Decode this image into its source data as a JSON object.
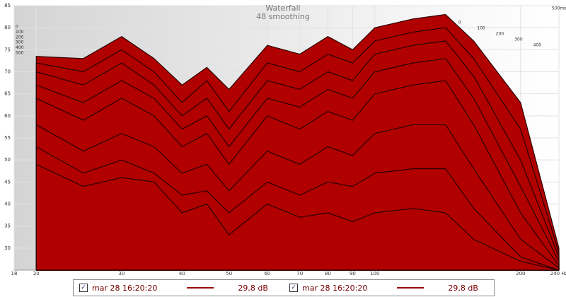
{
  "chart_data": {
    "type": "waterfall",
    "title": "Waterfall",
    "subtitle": "48 smoothing",
    "x_log": true,
    "xlim": [
      18,
      240
    ],
    "xticks": [
      18,
      20,
      30,
      40,
      50,
      60,
      70,
      80,
      90,
      100,
      200,
      {
        "value": 240,
        "label": "240 Hz"
      }
    ],
    "ylim": [
      25,
      85
    ],
    "yticks": [
      30,
      35,
      40,
      45,
      50,
      55,
      60,
      65,
      70,
      75,
      80,
      85
    ],
    "grid": true,
    "zlim": [
      0,
      500
    ],
    "zticks": [
      0,
      100,
      200,
      300,
      400,
      {
        "value": 500,
        "label": "500ms"
      }
    ],
    "zticks_left": [
      0,
      100,
      200,
      300,
      400,
      500
    ],
    "color": "#b00000",
    "x": [
      20,
      25,
      30,
      35,
      40,
      45,
      50,
      60,
      70,
      80,
      90,
      100,
      120,
      140,
      160,
      200,
      240
    ],
    "slices": [
      {
        "t": 0,
        "values": [
          73.5,
          73,
          78,
          73,
          67,
          71,
          66,
          76,
          74,
          78,
          75,
          80,
          82,
          83,
          77,
          63,
          30
        ]
      },
      {
        "t": 50,
        "values": [
          72,
          70,
          75,
          70,
          63,
          68,
          61,
          72,
          70,
          74,
          72,
          77,
          79,
          80,
          73,
          57,
          29
        ]
      },
      {
        "t": 100,
        "values": [
          70,
          67,
          72,
          67,
          60,
          64,
          57,
          68,
          66,
          70,
          68,
          74,
          76,
          77,
          69,
          50,
          28
        ]
      },
      {
        "t": 150,
        "values": [
          67,
          63,
          68,
          64,
          57,
          60,
          53,
          64,
          62,
          66,
          64,
          70,
          72,
          73,
          64,
          44,
          27
        ]
      },
      {
        "t": 200,
        "values": [
          64,
          59,
          64,
          60,
          53,
          56,
          49,
          60,
          57,
          61,
          59,
          65,
          67,
          68,
          58,
          38,
          26
        ]
      },
      {
        "t": 300,
        "values": [
          58,
          52,
          56,
          53,
          47,
          49,
          43,
          52,
          49,
          53,
          51,
          56,
          58,
          58,
          48,
          32,
          25.5
        ]
      },
      {
        "t": 400,
        "values": [
          53,
          47,
          50,
          47,
          42,
          43,
          38,
          45,
          42,
          45,
          44,
          47,
          48,
          48,
          39,
          28,
          25
        ]
      },
      {
        "t": 500,
        "values": [
          49,
          44,
          46,
          45,
          38,
          40,
          33,
          40,
          37,
          38,
          36,
          38,
          39,
          38,
          32,
          27,
          25
        ]
      }
    ],
    "legend": [
      {
        "name": "mar 28 16:20:20",
        "level": "29,8 dB",
        "color": "#990000"
      },
      {
        "name": "mar 28 16:20:20",
        "level": "29,8 dB",
        "color": "#990000"
      }
    ]
  }
}
